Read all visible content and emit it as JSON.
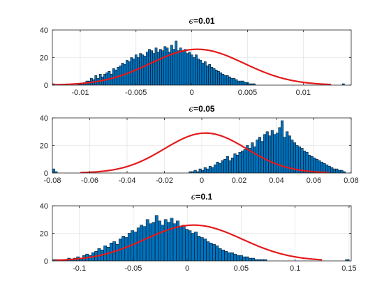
{
  "colors": {
    "bar_fill": "#0072BD",
    "bar_edge": "#000000",
    "fit_line": "#E41A1C",
    "grid": "#DCDCDC",
    "axis": "#262626"
  },
  "chart_data": [
    {
      "type": "bar",
      "title": "ϵ=0.01",
      "title_parts": {
        "symbol": "ϵ",
        "rest": "=0.01"
      },
      "xlabel": "",
      "ylabel": "",
      "xlim": [
        -0.0125,
        0.0143
      ],
      "ylim": [
        0,
        40
      ],
      "xticks": [
        -0.01,
        -0.005,
        0,
        0.005,
        0.01
      ],
      "xtick_labels": [
        "-0.01",
        "-0.005",
        "0",
        "0.005",
        "0.01"
      ],
      "yticks": [
        0,
        20,
        40
      ],
      "ytick_labels": [
        "0",
        "20",
        "40"
      ],
      "grid": true,
      "series": [
        {
          "type": "histogram",
          "bin_start": -0.0125,
          "bin_width": 0.0002,
          "counts": [
            1,
            0,
            0,
            0,
            0,
            0,
            0,
            0,
            0,
            0,
            0,
            1,
            1,
            1,
            2,
            3,
            3,
            5,
            4,
            7,
            5,
            8,
            6,
            8,
            9,
            10,
            8,
            12,
            11,
            13,
            14,
            16,
            15,
            18,
            17,
            20,
            19,
            22,
            20,
            23,
            22,
            21,
            24,
            26,
            25,
            23,
            27,
            24,
            26,
            25,
            28,
            27,
            24,
            29,
            26,
            32,
            25,
            27,
            24,
            26,
            23,
            24,
            22,
            20,
            22,
            19,
            18,
            16,
            17,
            14,
            15,
            13,
            12,
            11,
            10,
            9,
            8,
            7,
            7,
            6,
            5,
            5,
            4,
            3,
            3,
            3,
            2,
            2,
            1,
            1,
            1,
            0,
            0,
            0,
            0,
            0,
            0,
            0,
            0,
            0,
            0,
            0,
            0,
            0,
            0,
            0,
            0,
            0,
            0,
            0,
            0,
            0,
            0,
            0,
            0,
            0,
            0,
            0,
            0,
            0,
            0,
            0,
            0,
            0,
            0,
            0,
            0,
            0,
            0,
            0,
            1
          ]
        },
        {
          "type": "line",
          "name": "",
          "mean": 0.0005,
          "sigma": 0.0042,
          "peak": 26,
          "x_range": [
            -0.0125,
            0.0125
          ]
        }
      ]
    },
    {
      "type": "bar",
      "title": "ϵ=0.05",
      "title_parts": {
        "symbol": "ϵ",
        "rest": "=0.05"
      },
      "xlabel": "",
      "ylabel": "",
      "xlim": [
        -0.08,
        0.08
      ],
      "ylim": [
        0,
        40
      ],
      "xticks": [
        -0.08,
        -0.06,
        -0.04,
        -0.02,
        0,
        0.02,
        0.04,
        0.06,
        0.08
      ],
      "xtick_labels": [
        "-0.08",
        "-0.06",
        "-0.04",
        "-0.02",
        "0",
        "0.02",
        "0.04",
        "0.06",
        "0.08"
      ],
      "yticks": [
        0,
        20,
        40
      ],
      "ytick_labels": [
        "0",
        "20",
        "40"
      ],
      "grid": true,
      "series": [
        {
          "type": "histogram",
          "bin_start": -0.08,
          "bin_width": 0.00133,
          "counts": [
            3,
            1,
            0,
            0,
            0,
            0,
            0,
            0,
            0,
            0,
            0,
            0,
            0,
            0,
            0,
            0,
            0,
            0,
            0,
            0,
            0,
            0,
            0,
            0,
            0,
            0,
            0,
            0,
            0,
            0,
            0,
            0,
            0,
            0,
            0,
            0,
            0,
            0,
            0,
            0,
            0,
            0,
            0,
            0,
            0,
            0,
            0,
            0,
            0,
            0,
            0,
            0,
            0,
            0,
            0,
            1,
            1,
            2,
            1,
            3,
            2,
            4,
            3,
            5,
            4,
            6,
            8,
            7,
            9,
            10,
            12,
            9,
            11,
            14,
            13,
            15,
            16,
            17,
            20,
            18,
            22,
            19,
            24,
            26,
            23,
            28,
            30,
            27,
            31,
            28,
            29,
            33,
            38,
            26,
            30,
            27,
            24,
            22,
            20,
            19,
            18,
            16,
            15,
            13,
            12,
            11,
            10,
            9,
            8,
            7,
            6,
            5,
            4,
            3,
            3,
            2,
            2,
            1,
            0,
            0,
            0,
            0,
            0,
            0,
            0,
            0,
            0,
            0,
            0,
            0,
            0,
            0,
            0,
            0,
            0,
            0,
            0,
            0,
            0,
            0,
            0,
            0,
            0,
            0,
            0,
            0,
            0,
            0,
            0,
            0,
            0,
            0,
            0,
            0,
            0,
            0,
            0,
            0,
            0,
            0,
            0,
            0,
            0,
            0,
            0,
            1,
            0,
            0,
            0,
            0,
            0,
            0,
            0,
            0,
            0,
            0,
            0,
            0,
            0,
            0,
            0,
            0,
            0,
            0,
            0,
            0,
            0,
            0,
            0,
            0,
            0,
            0,
            0,
            0,
            0,
            0,
            0,
            0,
            0,
            0,
            0,
            0,
            0,
            0,
            0,
            0,
            0,
            0,
            0,
            0,
            0,
            0,
            0,
            0,
            0,
            0,
            0,
            0,
            1
          ]
        },
        {
          "type": "line",
          "name": "",
          "mean": 0.002,
          "sigma": 0.022,
          "peak": 29,
          "x_range": [
            -0.065,
            0.068
          ]
        }
      ]
    },
    {
      "type": "bar",
      "title": "ϵ=0.1",
      "title_parts": {
        "symbol": "ϵ",
        "rest": "=0.1"
      },
      "xlabel": "",
      "ylabel": "",
      "xlim": [
        -0.125,
        0.152
      ],
      "ylim": [
        0,
        40
      ],
      "xticks": [
        -0.1,
        -0.05,
        0,
        0.05,
        0.1,
        0.15
      ],
      "xtick_labels": [
        "-0.1",
        "-0.05",
        "0",
        "0.05",
        "0.1",
        "0.15"
      ],
      "yticks": [
        0,
        20,
        40
      ],
      "ytick_labels": [
        "0",
        "20",
        "40"
      ],
      "grid": true,
      "series": [
        {
          "type": "histogram",
          "bin_start": -0.125,
          "bin_width": 0.0028,
          "counts": [
            1,
            1,
            0,
            1,
            1,
            2,
            1,
            2,
            3,
            2,
            4,
            5,
            4,
            6,
            7,
            9,
            8,
            11,
            10,
            13,
            14,
            12,
            16,
            18,
            17,
            20,
            22,
            21,
            24,
            26,
            25,
            30,
            27,
            28,
            33,
            29,
            26,
            30,
            28,
            31,
            27,
            29,
            25,
            26,
            23,
            22,
            20,
            21,
            18,
            17,
            16,
            14,
            13,
            12,
            11,
            9,
            8,
            7,
            6,
            6,
            5,
            4,
            4,
            3,
            3,
            2,
            2,
            1,
            1,
            1,
            1,
            0,
            0,
            0,
            0,
            0,
            0,
            0,
            0,
            0,
            0,
            0,
            0,
            0,
            0,
            0,
            0,
            0,
            0,
            0,
            0,
            0,
            0,
            0,
            0,
            0,
            0,
            1
          ]
        },
        {
          "type": "line",
          "name": "",
          "mean": 0.006,
          "sigma": 0.045,
          "peak": 26,
          "x_range": [
            -0.123,
            0.125
          ]
        }
      ]
    }
  ]
}
